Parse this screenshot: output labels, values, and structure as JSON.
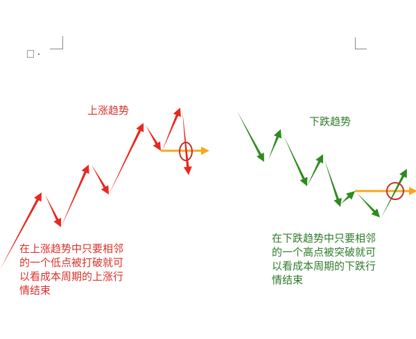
{
  "colors": {
    "up": "#e8281e",
    "down": "#2e8b1e",
    "break_line": "#f5a81c",
    "circle": "#c0302a",
    "up_text": "#d9302a",
    "down_text": "#2f7a2a"
  },
  "uptrend": {
    "title": "上涨趋势",
    "description_lines": [
      "在上涨趋势中只要相邻",
      "的一个低点被打破就可",
      "以看成本周期的上涨行",
      "情结束"
    ]
  },
  "downtrend": {
    "title": "下跌趋势",
    "description_lines": [
      "在下跌趋势中只要相邻",
      "的一个高点被突破就可",
      "以看成本周期的下跌行",
      "情结束"
    ]
  },
  "page_icon": "paste-options-icon"
}
